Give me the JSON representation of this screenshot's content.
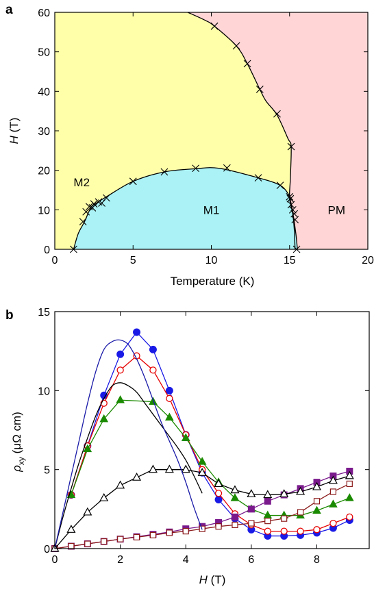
{
  "chart_data": [
    {
      "type": "scatter",
      "panel_label": "a",
      "xlabel": "Temperature (K)",
      "ylabel_main": "H",
      "ylabel_unit": " (T)",
      "xlim": [
        0,
        20
      ],
      "ylim": [
        0,
        60
      ],
      "xticks": [
        0,
        5,
        10,
        15,
        20
      ],
      "yticks": [
        0,
        10,
        20,
        30,
        40,
        50,
        60
      ],
      "regions": [
        {
          "name": "M2",
          "label_at": [
            1.2,
            17
          ],
          "color": "#ffffaa"
        },
        {
          "name": "M1",
          "label_at": [
            10,
            10
          ],
          "color": "#aaf2f5"
        },
        {
          "name": "PM",
          "label_at": [
            18,
            10
          ],
          "color": "#ffd5d5"
        }
      ],
      "upper_boundary": {
        "points": [
          [
            8.5,
            60
          ],
          [
            9.6,
            58
          ],
          [
            10.2,
            56.5
          ],
          [
            11.6,
            51.5
          ],
          [
            12.3,
            47
          ],
          [
            13.1,
            40.5
          ],
          [
            13.5,
            37.5
          ],
          [
            14.2,
            34
          ],
          [
            14.9,
            28
          ],
          [
            15.1,
            26
          ],
          [
            15.05,
            18
          ],
          [
            15.0,
            13
          ],
          [
            15.2,
            9
          ],
          [
            15.3,
            5
          ],
          [
            15.35,
            0
          ]
        ]
      },
      "lower_dome": {
        "points": [
          [
            1.2,
            0
          ],
          [
            1.5,
            4
          ],
          [
            1.9,
            7
          ],
          [
            2.3,
            10.5
          ],
          [
            2.7,
            11.8
          ],
          [
            3.3,
            13.3
          ],
          [
            5,
            17.2
          ],
          [
            7,
            19.6
          ],
          [
            9,
            20.4
          ],
          [
            10.5,
            20.5
          ],
          [
            13,
            18.1
          ],
          [
            14.4,
            16.2
          ],
          [
            15.0,
            13.5
          ],
          [
            15.05,
            12.5
          ],
          [
            15.2,
            9.5
          ],
          [
            15.4,
            4
          ],
          [
            15.5,
            0
          ]
        ]
      },
      "markers": [
        [
          10.2,
          56.5
        ],
        [
          11.6,
          51.5
        ],
        [
          12.3,
          47
        ],
        [
          13.1,
          40.5
        ],
        [
          14.2,
          34.3
        ],
        [
          15.1,
          26
        ],
        [
          1.2,
          0
        ],
        [
          1.8,
          7
        ],
        [
          2.0,
          9.5
        ],
        [
          2.2,
          10.8
        ],
        [
          2.4,
          10.5
        ],
        [
          2.5,
          11.5
        ],
        [
          2.8,
          12
        ],
        [
          3.0,
          11.7
        ],
        [
          3.3,
          13
        ],
        [
          5,
          17.2
        ],
        [
          7,
          19.6
        ],
        [
          9,
          20.5
        ],
        [
          11,
          20.6
        ],
        [
          13,
          18.1
        ],
        [
          14.4,
          16.2
        ],
        [
          15.0,
          13.3
        ],
        [
          15.05,
          12.8
        ],
        [
          15.1,
          11.3
        ],
        [
          15.2,
          10
        ],
        [
          15.3,
          9
        ],
        [
          15.35,
          7.5
        ],
        [
          15.45,
          0
        ]
      ]
    },
    {
      "type": "line",
      "panel_label": "b",
      "xlabel_main": "H",
      "xlabel_unit": " (T)",
      "ylabel_main": "ρ",
      "ylabel_sub": "xy",
      "ylabel_unit": " (μΩ cm)",
      "xlim": [
        0,
        9.6
      ],
      "ylim": [
        0,
        15
      ],
      "xticks": [
        0,
        2,
        4,
        6,
        8
      ],
      "yticks": [
        0,
        5,
        10,
        15
      ],
      "series": [
        {
          "color": "#1a1ae6",
          "marker": "filled-circle",
          "x": [
            0.5,
            1,
            1.5,
            2,
            2.5,
            3,
            3.5,
            4,
            4.5,
            5,
            5.5,
            6,
            6.5,
            7,
            7.5,
            8,
            8.5,
            9
          ],
          "y": [
            3.4,
            6.5,
            9.7,
            12.3,
            13.7,
            12.6,
            10,
            7.2,
            4.8,
            3.1,
            1.9,
            1.2,
            0.8,
            0.8,
            0.85,
            1.0,
            1.3,
            1.8
          ]
        },
        {
          "color": "#e60000",
          "marker": "open-circle",
          "x": [
            0.5,
            1,
            1.5,
            2,
            2.5,
            3,
            3.5,
            4,
            4.5,
            5,
            5.5,
            6,
            6.5,
            7,
            7.5,
            8,
            8.5,
            9
          ],
          "y": [
            3.4,
            6.5,
            9.2,
            11.3,
            12.2,
            11.3,
            9.5,
            7.2,
            5.0,
            3.5,
            2.2,
            1.5,
            1.1,
            1.1,
            1.1,
            1.2,
            1.6,
            2.0
          ]
        },
        {
          "color": "#1a8a00",
          "marker": "filled-triangle",
          "x": [
            0.5,
            1,
            1.5,
            2,
            3,
            3.5,
            4,
            4.5,
            5,
            5.5,
            6,
            6.5,
            7,
            7.5,
            8,
            8.5,
            9
          ],
          "y": [
            3.4,
            6.3,
            8.2,
            9.4,
            9.3,
            8.3,
            7.0,
            5.5,
            4.2,
            3.2,
            2.5,
            2.1,
            2.1,
            2.1,
            2.4,
            2.8,
            3.2
          ]
        },
        {
          "color": "#7a1a8c",
          "marker": "filled-square",
          "x": [
            0,
            0.5,
            1,
            1.5,
            2,
            2.5,
            3,
            3.5,
            4,
            4.5,
            5,
            5.5,
            6,
            6.5,
            7,
            7.5,
            8,
            8.5,
            9
          ],
          "y": [
            0,
            0.15,
            0.3,
            0.45,
            0.6,
            0.75,
            0.9,
            1.05,
            1.25,
            1.4,
            1.65,
            2.0,
            2.5,
            3.0,
            3.4,
            3.8,
            4.2,
            4.6,
            4.9
          ]
        },
        {
          "color": "#8b1a1a",
          "marker": "open-square",
          "x": [
            0,
            0.5,
            1,
            1.5,
            2,
            2.5,
            3,
            3.5,
            4,
            4.5,
            5,
            5.5,
            6,
            6.5,
            7,
            7.5,
            8,
            8.5,
            9
          ],
          "y": [
            0,
            0.15,
            0.3,
            0.45,
            0.6,
            0.72,
            0.85,
            1.0,
            1.1,
            1.25,
            1.4,
            1.5,
            1.6,
            1.75,
            1.9,
            2.3,
            3.0,
            3.6,
            4.1
          ]
        },
        {
          "color": "#000000",
          "marker": "open-triangle",
          "x": [
            0,
            0.5,
            1,
            1.5,
            2,
            2.5,
            3,
            3.5,
            4,
            4.5,
            5,
            5.5,
            6,
            6.5,
            7,
            7.5,
            8,
            8.5,
            9
          ],
          "y": [
            0,
            1.2,
            2.3,
            3.2,
            4.0,
            4.5,
            5.0,
            5.0,
            5.0,
            4.8,
            4.1,
            3.7,
            3.45,
            3.4,
            3.45,
            3.6,
            3.9,
            4.3,
            4.6
          ]
        },
        {
          "color": "#000000",
          "marker": "none",
          "x": [
            0,
            0.25,
            0.5,
            0.75,
            1,
            1.25,
            1.5,
            1.75,
            2,
            2.25,
            2.5,
            2.75,
            3,
            3.25,
            3.5,
            3.75,
            4,
            4.25,
            4.5
          ],
          "y": [
            0,
            2.0,
            3.8,
            5.5,
            7.0,
            8.4,
            9.5,
            10.3,
            10.5,
            10.3,
            9.9,
            9.2,
            8.5,
            7.8,
            7.1,
            6.4,
            5.6,
            4.6,
            3.5
          ]
        },
        {
          "color": "#1a1aa8",
          "marker": "none",
          "x": [
            0,
            0.25,
            0.5,
            0.75,
            1,
            1.25,
            1.5,
            1.75,
            2,
            2.25,
            2.5,
            2.75,
            3,
            3.25,
            3.5,
            3.75,
            4,
            4.25,
            4.5
          ],
          "y": [
            0,
            2.3,
            4.6,
            6.9,
            9.2,
            11.2,
            12.6,
            13.1,
            13.2,
            12.9,
            12.0,
            10.8,
            9.4,
            8.0,
            6.8,
            5.6,
            4.2,
            2.6,
            1.2
          ]
        }
      ]
    }
  ]
}
